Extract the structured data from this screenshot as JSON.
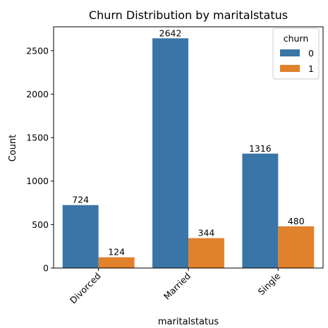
{
  "chart_data": {
    "type": "bar",
    "title": "Churn Distribution by maritalstatus",
    "xlabel": "maritalstatus",
    "ylabel": "Count",
    "categories": [
      "Divorced",
      "Married",
      "Single"
    ],
    "series": [
      {
        "name": "0",
        "color": "#3a75a8",
        "values": [
          724,
          2642,
          1316
        ]
      },
      {
        "name": "1",
        "color": "#e1812c",
        "values": [
          124,
          344,
          480
        ]
      }
    ],
    "yticks": [
      0,
      500,
      1000,
      1500,
      2000,
      2500
    ],
    "ylim": [
      0,
      2774
    ],
    "legend": {
      "title": "churn",
      "position": "top-right"
    },
    "grid": false
  }
}
